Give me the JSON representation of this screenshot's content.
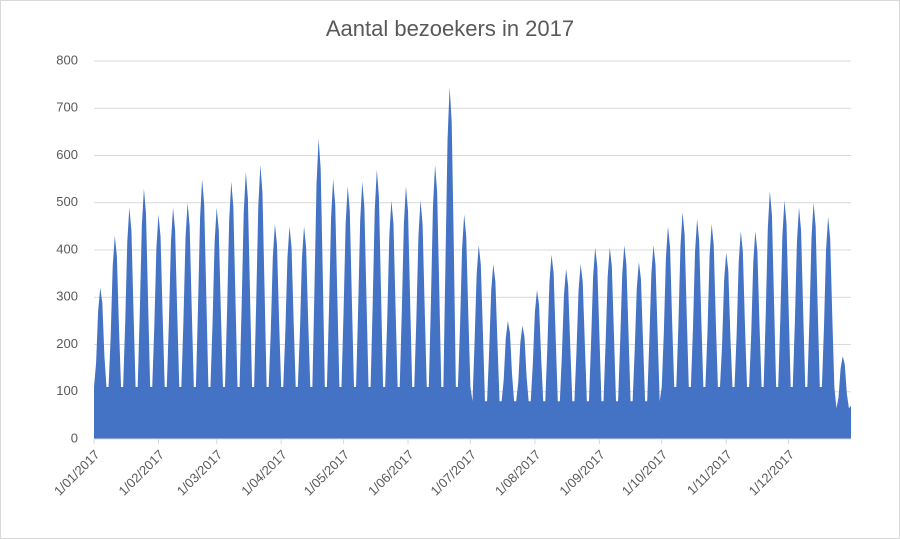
{
  "chart_data": {
    "type": "area",
    "title": "Aantal bezoekers in 2017",
    "color": "#4472c4",
    "grid": true,
    "ylim": [
      0,
      800
    ],
    "yticks": [
      0,
      100,
      200,
      300,
      400,
      500,
      600,
      700,
      800
    ],
    "categories": [
      "1/01/2017",
      null,
      null,
      null,
      null,
      null,
      null,
      null,
      null,
      null,
      null,
      null,
      null,
      null,
      null,
      null,
      null,
      null,
      null,
      null,
      null,
      null,
      null,
      null,
      null,
      null,
      null,
      null,
      null,
      null,
      null,
      "1/02/2017",
      null,
      null,
      null,
      null,
      null,
      null,
      null,
      null,
      null,
      null,
      null,
      null,
      null,
      null,
      null,
      null,
      null,
      null,
      null,
      null,
      null,
      null,
      null,
      null,
      null,
      null,
      null,
      "1/03/2017",
      null,
      null,
      null,
      null,
      null,
      null,
      null,
      null,
      null,
      null,
      null,
      null,
      null,
      null,
      null,
      null,
      null,
      null,
      null,
      null,
      null,
      null,
      null,
      null,
      null,
      null,
      null,
      null,
      null,
      null,
      "1/04/2017",
      null,
      null,
      null,
      null,
      null,
      null,
      null,
      null,
      null,
      null,
      null,
      null,
      null,
      null,
      null,
      null,
      null,
      null,
      null,
      null,
      null,
      null,
      null,
      null,
      null,
      null,
      null,
      null,
      null,
      "1/05/2017",
      null,
      null,
      null,
      null,
      null,
      null,
      null,
      null,
      null,
      null,
      null,
      null,
      null,
      null,
      null,
      null,
      null,
      null,
      null,
      null,
      null,
      null,
      null,
      null,
      null,
      null,
      null,
      null,
      null,
      null,
      "1/06/2017",
      null,
      null,
      null,
      null,
      null,
      null,
      null,
      null,
      null,
      null,
      null,
      null,
      null,
      null,
      null,
      null,
      null,
      null,
      null,
      null,
      null,
      null,
      null,
      null,
      null,
      null,
      null,
      null,
      null,
      "1/07/2017",
      null,
      null,
      null,
      null,
      null,
      null,
      null,
      null,
      null,
      null,
      null,
      null,
      null,
      null,
      null,
      null,
      null,
      null,
      null,
      null,
      null,
      null,
      null,
      null,
      null,
      null,
      null,
      null,
      null,
      null,
      "1/08/2017",
      null,
      null,
      null,
      null,
      null,
      null,
      null,
      null,
      null,
      null,
      null,
      null,
      null,
      null,
      null,
      null,
      null,
      null,
      null,
      null,
      null,
      null,
      null,
      null,
      null,
      null,
      null,
      null,
      null,
      null,
      "1/09/2017",
      null,
      null,
      null,
      null,
      null,
      null,
      null,
      null,
      null,
      null,
      null,
      null,
      null,
      null,
      null,
      null,
      null,
      null,
      null,
      null,
      null,
      null,
      null,
      null,
      null,
      null,
      null,
      null,
      null,
      "1/10/2017",
      null,
      null,
      null,
      null,
      null,
      null,
      null,
      null,
      null,
      null,
      null,
      null,
      null,
      null,
      null,
      null,
      null,
      null,
      null,
      null,
      null,
      null,
      null,
      null,
      null,
      null,
      null,
      null,
      null,
      null,
      "1/11/2017",
      null,
      null,
      null,
      null,
      null,
      null,
      null,
      null,
      null,
      null,
      null,
      null,
      null,
      null,
      null,
      null,
      null,
      null,
      null,
      null,
      null,
      null,
      null,
      null,
      null,
      null,
      null,
      null,
      null,
      "1/12/2017",
      null,
      null,
      null,
      null,
      null,
      null,
      null,
      null,
      null,
      null,
      null,
      null,
      null,
      null,
      null,
      null,
      null,
      null,
      null,
      null,
      null,
      null,
      null,
      null,
      null,
      null,
      null,
      null,
      null,
      null
    ],
    "values": [
      110,
      160,
      272,
      320,
      288,
      176,
      110,
      110,
      215,
      366,
      430,
      387,
      237,
      110,
      110,
      245,
      417,
      490,
      441,
      270,
      110,
      110,
      265,
      451,
      530,
      477,
      292,
      110,
      110,
      238,
      404,
      475,
      428,
      261,
      110,
      110,
      245,
      417,
      490,
      441,
      270,
      110,
      110,
      250,
      425,
      500,
      450,
      275,
      110,
      110,
      275,
      468,
      550,
      495,
      303,
      110,
      110,
      245,
      417,
      490,
      441,
      270,
      110,
      110,
      273,
      463,
      545,
      491,
      300,
      110,
      110,
      283,
      480,
      565,
      509,
      311,
      110,
      110,
      290,
      493,
      580,
      522,
      319,
      110,
      110,
      228,
      387,
      455,
      410,
      250,
      110,
      110,
      225,
      383,
      450,
      405,
      248,
      110,
      110,
      225,
      383,
      450,
      405,
      248,
      110,
      110,
      318,
      540,
      635,
      572,
      349,
      110,
      110,
      275,
      468,
      550,
      495,
      303,
      110,
      110,
      268,
      455,
      535,
      482,
      294,
      110,
      110,
      273,
      463,
      545,
      491,
      300,
      110,
      110,
      285,
      485,
      570,
      513,
      314,
      110,
      110,
      253,
      429,
      505,
      455,
      278,
      110,
      110,
      268,
      455,
      535,
      482,
      294,
      110,
      110,
      253,
      429,
      505,
      455,
      278,
      110,
      110,
      290,
      493,
      580,
      522,
      319,
      110,
      110,
      373,
      633,
      745,
      671,
      410,
      110,
      110,
      238,
      404,
      475,
      428,
      261,
      110,
      80,
      205,
      349,
      410,
      369,
      226,
      80,
      80,
      185,
      315,
      370,
      333,
      204,
      80,
      80,
      125,
      213,
      250,
      225,
      138,
      80,
      80,
      120,
      204,
      240,
      216,
      132,
      80,
      80,
      158,
      268,
      315,
      284,
      173,
      80,
      80,
      195,
      332,
      390,
      351,
      215,
      80,
      80,
      180,
      306,
      360,
      324,
      198,
      80,
      80,
      185,
      315,
      370,
      333,
      204,
      80,
      80,
      203,
      344,
      405,
      365,
      223,
      80,
      80,
      203,
      344,
      405,
      365,
      223,
      80,
      80,
      205,
      349,
      410,
      369,
      226,
      80,
      80,
      188,
      319,
      375,
      338,
      206,
      80,
      80,
      205,
      349,
      410,
      369,
      226,
      80,
      110,
      225,
      383,
      450,
      405,
      248,
      110,
      110,
      240,
      408,
      480,
      432,
      264,
      110,
      110,
      233,
      395,
      465,
      419,
      256,
      110,
      110,
      228,
      387,
      455,
      410,
      250,
      110,
      110,
      198,
      336,
      395,
      356,
      217,
      110,
      110,
      220,
      374,
      440,
      396,
      242,
      110,
      110,
      220,
      374,
      440,
      396,
      242,
      110,
      110,
      263,
      446,
      525,
      473,
      289,
      110,
      110,
      253,
      429,
      505,
      455,
      278,
      110,
      110,
      245,
      417,
      490,
      441,
      270,
      110,
      110,
      250,
      425,
      500,
      450,
      275,
      110,
      110,
      235,
      400,
      470,
      423,
      259,
      110,
      65,
      88,
      149,
      175,
      158,
      96,
      65,
      70
    ]
  }
}
